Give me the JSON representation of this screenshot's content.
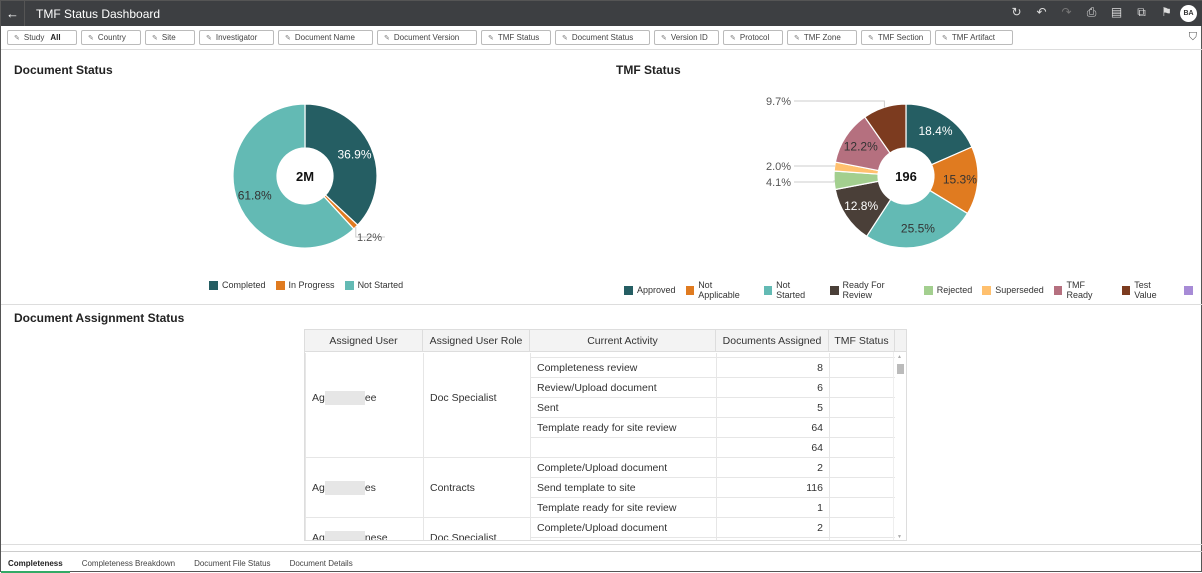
{
  "header": {
    "title": "TMF Status Dashboard",
    "avatar": "BA",
    "back_icon": "arrow-left-icon"
  },
  "filters": [
    {
      "label": "Study",
      "value": "All"
    },
    {
      "label": "Country"
    },
    {
      "label": "Site"
    },
    {
      "label": "Investigator"
    },
    {
      "label": "Document Name"
    },
    {
      "label": "Document Version"
    },
    {
      "label": "TMF Status"
    },
    {
      "label": "Document Status"
    },
    {
      "label": "Version ID"
    },
    {
      "label": "Protocol"
    },
    {
      "label": "TMF Zone"
    },
    {
      "label": "TMF Section"
    },
    {
      "label": "TMF Artifact"
    }
  ],
  "document_status": {
    "title": "Document Status",
    "center": "2M",
    "chart_data": {
      "type": "pie",
      "categories": [
        "Completed",
        "In Progress",
        "Not Started"
      ],
      "values": [
        36.9,
        1.2,
        61.8
      ],
      "colors": [
        "#255e63",
        "#e07b20",
        "#63bab4"
      ],
      "labels": [
        "36.9%",
        "1.2%",
        "61.8%"
      ],
      "center_label": "2M",
      "legend": "bottom"
    }
  },
  "tmf_status": {
    "title": "TMF Status",
    "center": "196",
    "chart_data": {
      "type": "pie",
      "categories": [
        "Approved",
        "Not Applicable",
        "Not Started",
        "Ready For Review",
        "Rejected",
        "Superseded",
        "TMF Ready",
        "Test Value",
        ""
      ],
      "values": [
        18.4,
        15.3,
        25.5,
        12.8,
        4.1,
        2.0,
        12.2,
        9.7,
        0
      ],
      "colors": [
        "#255e63",
        "#e07b20",
        "#63bab4",
        "#4a3f38",
        "#a3cf8f",
        "#ffc06e",
        "#b5707f",
        "#7c3b1f",
        "#a78bd6"
      ],
      "labels": [
        "18.4%",
        "15.3%",
        "25.5%",
        "12.8%",
        "4.1%",
        "2.0%",
        "12.2%",
        "9.7%",
        ""
      ],
      "center_label": "196",
      "legend": "bottom"
    }
  },
  "assignment": {
    "title": "Document Assignment Status",
    "columns": [
      "Assigned User",
      "Assigned User Role",
      "Current Activity",
      "Documents Assigned",
      "TMF Status"
    ],
    "groups": [
      {
        "user_prefix": "Ag",
        "user_suffix": "ee",
        "role": "Doc Specialist",
        "rows": [
          {
            "activity": "",
            "count": ""
          },
          {
            "activity": "Completeness review",
            "count": "8"
          },
          {
            "activity": "Review/Upload document",
            "count": "6"
          },
          {
            "activity": "Sent",
            "count": "5"
          },
          {
            "activity": "Template ready for site review",
            "count": "64"
          },
          {
            "activity": "",
            "count": "64"
          }
        ]
      },
      {
        "user_prefix": "Ag",
        "user_suffix": "es",
        "role": "Contracts",
        "rows": [
          {
            "activity": "Complete/Upload document",
            "count": "2"
          },
          {
            "activity": "Send template to site",
            "count": "116"
          },
          {
            "activity": "Template ready for site review",
            "count": "1"
          }
        ]
      },
      {
        "user_prefix": "Ag",
        "user_suffix": "nese",
        "role": "Doc Specialist",
        "rows": [
          {
            "activity": "Complete/Upload document",
            "count": "2"
          },
          {
            "activity": "",
            "count": ""
          }
        ]
      }
    ]
  },
  "tabs": [
    {
      "label": "Completeness",
      "active": true
    },
    {
      "label": "Completeness Breakdown"
    },
    {
      "label": "Document File Status"
    },
    {
      "label": "Document Details"
    }
  ]
}
